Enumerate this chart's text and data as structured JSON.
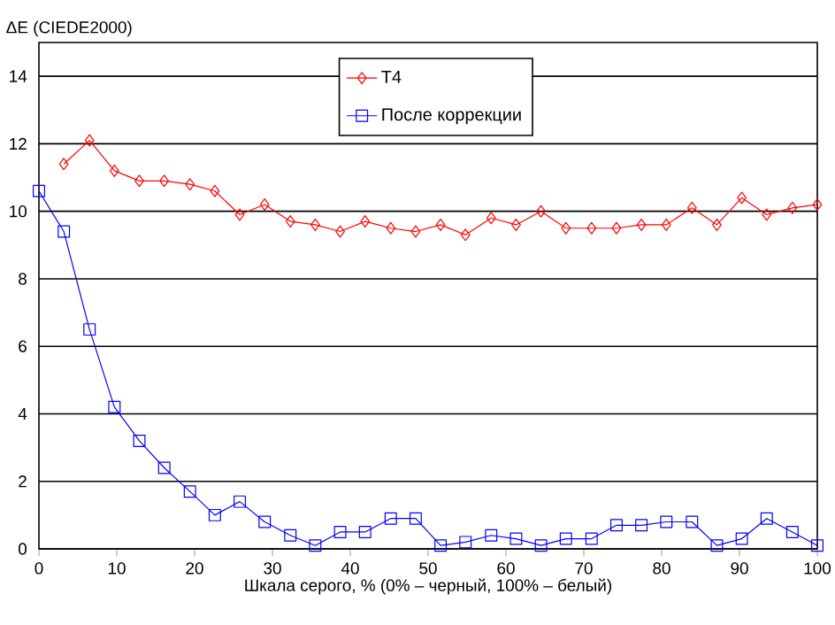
{
  "chart_data": {
    "type": "line",
    "xlabel": "Шкала серого, % (0% – черный, 100% – белый)",
    "ylabel": "ΔE (CIEDE2000)",
    "xlim": [
      0,
      100
    ],
    "xticks": [
      0,
      10,
      20,
      30,
      40,
      50,
      60,
      70,
      80,
      90,
      100
    ],
    "ylim": [
      0,
      15
    ],
    "yticks": [
      0,
      2,
      4,
      6,
      8,
      10,
      12,
      14
    ],
    "grid": "y",
    "legend": "top",
    "line_style": "solid",
    "series": [
      {
        "name": "T4",
        "color": "#ff0000",
        "marker": "diamond",
        "x": [
          3.2,
          6.5,
          9.7,
          12.9,
          16.1,
          19.4,
          22.6,
          25.8,
          29,
          32.3,
          35.5,
          38.7,
          41.9,
          45.2,
          48.4,
          51.6,
          54.8,
          58.1,
          61.3,
          64.5,
          67.7,
          71,
          74.2,
          77.4,
          80.6,
          83.9,
          87.1,
          90.3,
          93.5,
          96.8,
          100
        ],
        "values": [
          11.4,
          12.1,
          11.2,
          10.9,
          10.9,
          10.8,
          10.6,
          9.9,
          10.2,
          9.7,
          9.6,
          9.4,
          9.7,
          9.5,
          9.4,
          9.6,
          9.3,
          9.8,
          9.6,
          10.0,
          9.5,
          9.5,
          9.5,
          9.6,
          9.6,
          10.1,
          9.6,
          10.4,
          9.9,
          10.1,
          10.2
        ]
      },
      {
        "name": "После коррекции",
        "color": "#0000ff",
        "marker": "square",
        "x": [
          0,
          3.2,
          6.5,
          9.7,
          12.9,
          16.1,
          19.4,
          22.6,
          25.8,
          29,
          32.3,
          35.5,
          38.7,
          41.9,
          45.2,
          48.4,
          51.6,
          54.8,
          58.1,
          61.3,
          64.5,
          67.7,
          71,
          74.2,
          77.4,
          80.6,
          83.9,
          87.1,
          90.3,
          93.5,
          96.8,
          100
        ],
        "values": [
          10.6,
          9.4,
          6.5,
          4.2,
          3.2,
          2.4,
          1.7,
          1.0,
          1.4,
          0.8,
          0.4,
          0.1,
          0.5,
          0.5,
          0.9,
          0.9,
          0.1,
          0.2,
          0.4,
          0.3,
          0.1,
          0.3,
          0.3,
          0.7,
          0.7,
          0.8,
          0.8,
          0.1,
          0.3,
          0.9,
          0.5,
          0.1
        ]
      }
    ]
  }
}
